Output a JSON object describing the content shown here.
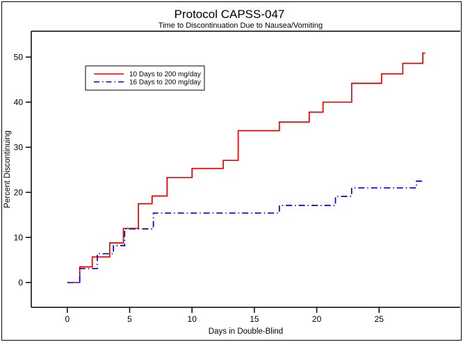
{
  "chart_data": {
    "type": "line",
    "subtype": "step-survival",
    "title": "Protocol CAPSS-047",
    "subtitle": "Time to Discontinuation Due to Nausea/Vomiting",
    "xlabel": "Days in Double-Blind",
    "ylabel": "Percent Discontinuing",
    "xlim": [
      0,
      25
    ],
    "ylim": [
      0,
      50
    ],
    "x_ticks": [
      0,
      5,
      10,
      15,
      20,
      25
    ],
    "y_ticks": [
      0,
      10,
      20,
      30,
      40,
      50
    ],
    "grid": false,
    "legend_position": "inside-top-left",
    "series": [
      {
        "name": "10 Days to 200 mg/day",
        "color": "#ee0000",
        "style": "solid",
        "steps": [
          [
            0,
            0
          ],
          [
            1,
            3.5
          ],
          [
            2,
            5.7
          ],
          [
            3.4,
            8.8
          ],
          [
            4.5,
            12
          ],
          [
            5.7,
            17.5
          ],
          [
            6.8,
            19.2
          ],
          [
            8,
            23.3
          ],
          [
            10,
            25.3
          ],
          [
            12.5,
            27.1
          ],
          [
            13.7,
            33.7
          ],
          [
            17,
            35.6
          ],
          [
            19.4,
            37.8
          ],
          [
            20.5,
            40
          ],
          [
            22.8,
            44.2
          ],
          [
            25.2,
            46.3
          ],
          [
            26.9,
            48.6
          ],
          [
            28.5,
            50.9
          ]
        ],
        "end_day": 28.7
      },
      {
        "name": "16 Days to 200 mg/day",
        "color": "#0000e0",
        "style": "dash-dot",
        "steps": [
          [
            0,
            0
          ],
          [
            1,
            3.1
          ],
          [
            2.4,
            6.4
          ],
          [
            3.7,
            8.2
          ],
          [
            4.6,
            11.9
          ],
          [
            6.9,
            15.4
          ],
          [
            17,
            17.1
          ],
          [
            21.5,
            19.1
          ],
          [
            22.8,
            21
          ],
          [
            28,
            22.5
          ]
        ],
        "end_day": 28.6
      }
    ]
  }
}
